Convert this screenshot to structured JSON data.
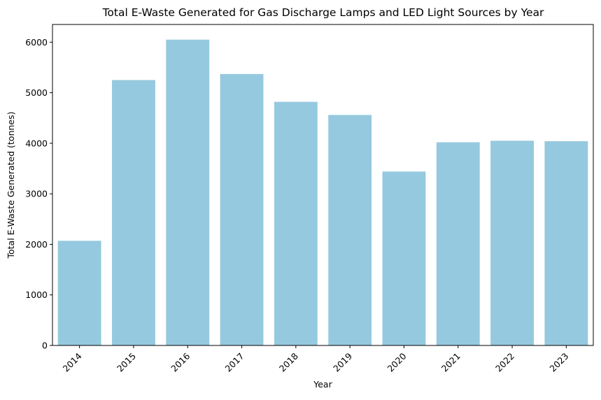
{
  "chart_data": {
    "type": "bar",
    "title": "Total E-Waste Generated for Gas Discharge Lamps and LED Light Sources by Year",
    "xlabel": "Year",
    "ylabel": "Total E-Waste Generated (tonnes)",
    "categories": [
      "2014",
      "2015",
      "2016",
      "2017",
      "2018",
      "2019",
      "2020",
      "2021",
      "2022",
      "2023"
    ],
    "values": [
      2070,
      5250,
      6050,
      5370,
      4820,
      4560,
      3440,
      4020,
      4050,
      4040
    ],
    "ylim": [
      0,
      6350
    ],
    "yticks": [
      0,
      1000,
      2000,
      3000,
      4000,
      5000,
      6000
    ],
    "ytick_labels": [
      "0",
      "1000",
      "2000",
      "3000",
      "4000",
      "5000",
      "6000"
    ],
    "bar_color": "#95c9df",
    "grid": false,
    "legend": false,
    "xtick_rotation_deg": 45
  }
}
